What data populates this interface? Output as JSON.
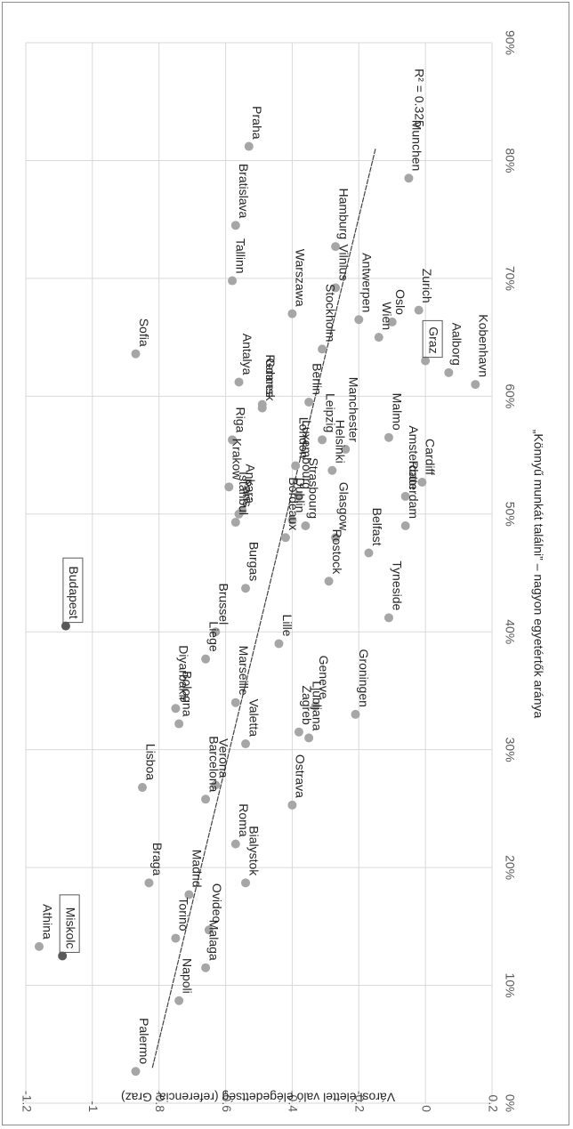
{
  "chart_data": {
    "type": "scatter",
    "orientation": "rotated-90-clockwise",
    "xlabel": "„Könnyű munkát találni” – nagyon egyetértők aránya",
    "ylabel": "Városi élettel való elégedettség (referencia: Graz)",
    "xlim": [
      0,
      0.9
    ],
    "ylim": [
      -1.2,
      0.2
    ],
    "x_ticks": [
      0,
      0.1,
      0.2,
      0.3,
      0.4,
      0.5,
      0.6,
      0.7,
      0.8,
      0.9
    ],
    "x_tick_labels": [
      "0%",
      "10%",
      "20%",
      "30%",
      "40%",
      "50%",
      "60%",
      "70%",
      "80%",
      "90%"
    ],
    "y_ticks": [
      0.2,
      0,
      -0.2,
      -0.4,
      -0.6,
      -0.8,
      -1,
      -1.2
    ],
    "y_tick_labels": [
      "0.2",
      "0",
      "-0.2",
      "-0.4",
      "-0.6",
      "-0.8",
      "-1",
      "-1.2"
    ],
    "grid": true,
    "trendline": {
      "x1": 0.03,
      "y1": -0.82,
      "x2": 0.81,
      "y2": -0.15
    },
    "r_squared_label": "R² = 0.325",
    "highlight_color": "#595959",
    "point_color": "#a6a6a6",
    "points": [
      {
        "name": "Kobenhavn",
        "x": 0.61,
        "y": 0.15
      },
      {
        "name": "Aalborg",
        "x": 0.62,
        "y": 0.07
      },
      {
        "name": "Munchen",
        "x": 0.785,
        "y": -0.05
      },
      {
        "name": "Graz",
        "x": 0.63,
        "y": 0.0,
        "boxed": true
      },
      {
        "name": "Zurich",
        "x": 0.673,
        "y": -0.02
      },
      {
        "name": "Cardiff",
        "x": 0.527,
        "y": -0.01
      },
      {
        "name": "Amsterdam",
        "x": 0.515,
        "y": -0.06
      },
      {
        "name": "Rotterdam",
        "x": 0.49,
        "y": -0.06
      },
      {
        "name": "Oslo",
        "x": 0.663,
        "y": -0.1
      },
      {
        "name": "Wien",
        "x": 0.65,
        "y": -0.14
      },
      {
        "name": "Malmo",
        "x": 0.565,
        "y": -0.11
      },
      {
        "name": "Antwerpen",
        "x": 0.665,
        "y": -0.2
      },
      {
        "name": "Hamburg",
        "x": 0.727,
        "y": -0.27
      },
      {
        "name": "Vilnius",
        "x": 0.692,
        "y": -0.27
      },
      {
        "name": "Stockholm",
        "x": 0.64,
        "y": -0.31
      },
      {
        "name": "Berlin",
        "x": 0.595,
        "y": -0.35
      },
      {
        "name": "Warszawa",
        "x": 0.67,
        "y": -0.4
      },
      {
        "name": "Praha",
        "x": 0.812,
        "y": -0.53
      },
      {
        "name": "Bratislava",
        "x": 0.745,
        "y": -0.57
      },
      {
        "name": "Tallinn",
        "x": 0.698,
        "y": -0.58
      },
      {
        "name": "Antalya",
        "x": 0.612,
        "y": -0.56
      },
      {
        "name": "Gdansk",
        "x": 0.59,
        "y": -0.49
      },
      {
        "name": "Rennes",
        "x": 0.593,
        "y": -0.49
      },
      {
        "name": "Riga",
        "x": 0.563,
        "y": -0.58
      },
      {
        "name": "Sofia",
        "x": 0.636,
        "y": -0.87
      },
      {
        "name": "Leipzig",
        "x": 0.563,
        "y": -0.31
      },
      {
        "name": "Helsinki",
        "x": 0.537,
        "y": -0.28
      },
      {
        "name": "Manchester",
        "x": 0.555,
        "y": -0.24
      },
      {
        "name": "Luxembourg",
        "x": 0.515,
        "y": -0.38
      },
      {
        "name": "London",
        "x": 0.541,
        "y": -0.39
      },
      {
        "name": "Krakow",
        "x": 0.523,
        "y": -0.59
      },
      {
        "name": "Paris",
        "x": 0.5,
        "y": -0.56
      },
      {
        "name": "Istanbul",
        "x": 0.493,
        "y": -0.57
      },
      {
        "name": "Belfast",
        "x": 0.467,
        "y": -0.17
      },
      {
        "name": "Glasgow",
        "x": 0.48,
        "y": -0.27
      },
      {
        "name": "Strasbourg",
        "x": 0.49,
        "y": -0.36
      },
      {
        "name": "Dublin",
        "x": 0.495,
        "y": -0.4
      },
      {
        "name": "Bordeaux",
        "x": 0.48,
        "y": -0.42
      },
      {
        "name": "Ankara",
        "x": 0.503,
        "y": -0.55
      },
      {
        "name": "Tyneside",
        "x": 0.412,
        "y": -0.11
      },
      {
        "name": "Rostock",
        "x": 0.443,
        "y": -0.29
      },
      {
        "name": "Burgas",
        "x": 0.437,
        "y": -0.54
      },
      {
        "name": "Budapest",
        "x": 0.405,
        "y": -1.08,
        "boxed": true,
        "highlight": true
      },
      {
        "name": "Lille",
        "x": 0.39,
        "y": -0.44
      },
      {
        "name": "Brussel",
        "x": 0.4,
        "y": -0.63
      },
      {
        "name": "Liege",
        "x": 0.377,
        "y": -0.66
      },
      {
        "name": "Marseille",
        "x": 0.34,
        "y": -0.57
      },
      {
        "name": "Diyarbakir",
        "x": 0.335,
        "y": -0.75
      },
      {
        "name": "Bologna",
        "x": 0.322,
        "y": -0.74
      },
      {
        "name": "Groningen",
        "x": 0.33,
        "y": -0.21
      },
      {
        "name": "Geneve",
        "x": 0.337,
        "y": -0.33
      },
      {
        "name": "Ljubljana",
        "x": 0.31,
        "y": -0.35
      },
      {
        "name": "Zagreb",
        "x": 0.315,
        "y": -0.38
      },
      {
        "name": "Valetta",
        "x": 0.305,
        "y": -0.54
      },
      {
        "name": "Verona",
        "x": 0.27,
        "y": -0.63
      },
      {
        "name": "Barcelona",
        "x": 0.258,
        "y": -0.66
      },
      {
        "name": "Lisboa",
        "x": 0.268,
        "y": -0.85
      },
      {
        "name": "Ostrava",
        "x": 0.253,
        "y": -0.4
      },
      {
        "name": "Roma",
        "x": 0.22,
        "y": -0.57
      },
      {
        "name": "Madrid",
        "x": 0.177,
        "y": -0.71
      },
      {
        "name": "Braga",
        "x": 0.187,
        "y": -0.83
      },
      {
        "name": "Bialystok",
        "x": 0.187,
        "y": -0.54
      },
      {
        "name": "Torino",
        "x": 0.14,
        "y": -0.75
      },
      {
        "name": "Ovideo",
        "x": 0.147,
        "y": -0.65
      },
      {
        "name": "Malaga",
        "x": 0.115,
        "y": -0.66
      },
      {
        "name": "Napoli",
        "x": 0.087,
        "y": -0.74
      },
      {
        "name": "Palermo",
        "x": 0.027,
        "y": -0.87
      },
      {
        "name": "Miskolc",
        "x": 0.125,
        "y": -1.09,
        "boxed": true,
        "highlight": true
      },
      {
        "name": "Athina",
        "x": 0.133,
        "y": -1.16
      }
    ]
  }
}
